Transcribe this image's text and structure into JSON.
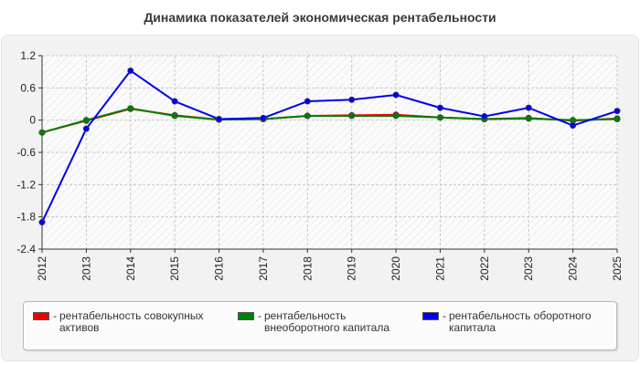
{
  "chart_data": {
    "type": "line",
    "title": "Динамика показателей экономическая рентабельности",
    "x": [
      "2012",
      "2013",
      "2014",
      "2015",
      "2016",
      "2017",
      "2018",
      "2019",
      "2020",
      "2021",
      "2022",
      "2023",
      "2024",
      "2025"
    ],
    "ylim": [
      -2.4,
      1.2
    ],
    "yticks": [
      "1.2",
      "0.6",
      "0",
      "-0.6",
      "-1.2",
      "-1.8",
      "-2.4"
    ],
    "grid": true,
    "legend_position": "bottom",
    "series": [
      {
        "name": "рентабельность совокупных активов",
        "color": "#ee0000",
        "values": [
          -0.23,
          -0.01,
          0.21,
          0.09,
          0.01,
          0.02,
          0.08,
          0.09,
          0.1,
          0.05,
          0.02,
          0.04,
          -0.01,
          0.03
        ]
      },
      {
        "name": "рентабельность внеоборотного капитала",
        "color": "#008000",
        "values": [
          -0.23,
          0.0,
          0.22,
          0.08,
          0.01,
          0.02,
          0.08,
          0.08,
          0.08,
          0.05,
          0.02,
          0.03,
          0.0,
          0.02
        ]
      },
      {
        "name": "рентабельность оборотного капитала",
        "color": "#0000ee",
        "values": [
          -1.9,
          -0.16,
          0.92,
          0.35,
          0.02,
          0.04,
          0.35,
          0.38,
          0.47,
          0.23,
          0.07,
          0.23,
          -0.1,
          0.17
        ]
      }
    ]
  },
  "legend": {
    "dash": "-",
    "items": [
      {
        "line1": "рентабельность совокупных",
        "line2": "активов"
      },
      {
        "line1": "рентабельность",
        "line2": "внеоборотного капитала"
      },
      {
        "line1": "рентабельность оборотного",
        "line2": "капитала"
      }
    ]
  }
}
